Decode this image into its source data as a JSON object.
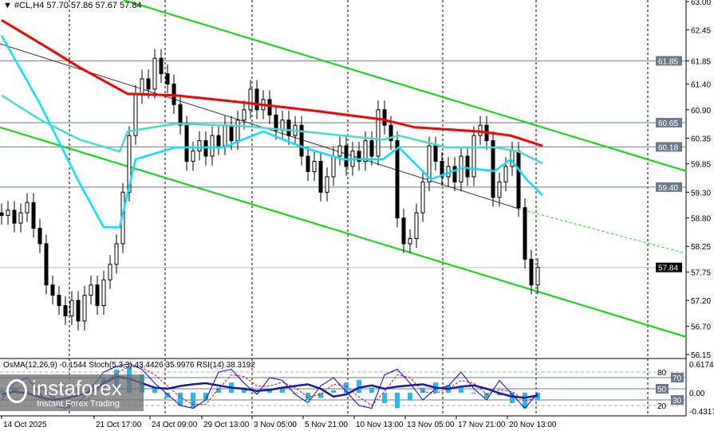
{
  "header": {
    "symbol": "#CL,H4",
    "ohlc": "57.70 57.86 57.67 57.84"
  },
  "indicators_label": "OsMA(12,26,9) -0.1544  Stoch(5,3,3) 43.4426 35.9976  RSI(14) 38.3192",
  "watermark": {
    "brand": "instaforex",
    "tagline": "Instant Forex Trading"
  },
  "colors": {
    "up": "#000000",
    "ma_slow": "#ff0000",
    "ma_mid": "#40e0d0",
    "ma_fast": "#00e5ff",
    "channel": "#00e000",
    "osma": "#22bbee",
    "stoch_main": "#0000ff",
    "stoch_signal": "#ff0000",
    "rsi": "#1a1aa0"
  },
  "chart_data": {
    "type": "candlestick",
    "price_axis": {
      "range": [
        56.15,
        63.0
      ],
      "ticks": [
        "63.00",
        "62.45",
        "61.85",
        "61.40",
        "60.90",
        "60.35",
        "59.85",
        "59.30",
        "58.80",
        "58.25",
        "57.75",
        "57.20",
        "56.70",
        "56.15"
      ]
    },
    "levels": [
      {
        "value": 61.85,
        "label": "61.85"
      },
      {
        "value": 60.65,
        "label": "60.65"
      },
      {
        "value": 60.18,
        "label": "60.18"
      },
      {
        "value": 59.4,
        "label": "59.40"
      }
    ],
    "current_price": {
      "value": 57.84,
      "label": "57.84"
    },
    "time_labels": [
      "14 Oct 2025",
      "21 Oct 17:00",
      "24 Oct 09:00",
      "29 Oct 13:00",
      "3 Nov 05:00",
      "5 Nov 21:00",
      "10 Nov 13:00",
      "13 Nov 05:00",
      "17 Nov 21:00",
      "20 Nov 13:00"
    ],
    "close": [
      58.85,
      58.95,
      58.7,
      58.9,
      59.1,
      58.6,
      58.3,
      57.5,
      57.3,
      57.1,
      56.9,
      57.2,
      56.8,
      57.3,
      57.5,
      57.1,
      57.6,
      57.9,
      58.3,
      59.3,
      60.4,
      61.2,
      61.5,
      61.3,
      61.9,
      61.6,
      61.4,
      61.0,
      60.6,
      59.9,
      60.1,
      60.3,
      60.0,
      60.4,
      60.2,
      60.6,
      60.3,
      60.7,
      60.9,
      61.3,
      60.9,
      61.1,
      60.8,
      60.5,
      60.7,
      60.4,
      60.6,
      60.0,
      59.7,
      59.9,
      59.3,
      59.6,
      60.0,
      60.2,
      59.8,
      60.1,
      59.9,
      60.3,
      60.0,
      60.9,
      60.6,
      60.3,
      58.8,
      58.3,
      58.4,
      58.9,
      59.5,
      60.2,
      59.9,
      59.6,
      59.8,
      59.5,
      60.0,
      59.6,
      60.4,
      60.6,
      60.3,
      59.2,
      59.5,
      59.8,
      60.1,
      59.0,
      58.0,
      57.5,
      57.84
    ],
    "ma_slow": [
      [
        0,
        62.64
      ],
      [
        7.25,
        62.1
      ],
      [
        12.25,
        61.72
      ],
      [
        19.75,
        61.21
      ],
      [
        27.25,
        61.18
      ],
      [
        37.25,
        61.05
      ],
      [
        49.75,
        60.87
      ],
      [
        59.75,
        60.71
      ],
      [
        64.75,
        60.56
      ],
      [
        74.75,
        60.48
      ],
      [
        79.75,
        60.4
      ],
      [
        84.75,
        60.2
      ]
    ],
    "ma_mid": [
      [
        0,
        61.18
      ],
      [
        6,
        60.71
      ],
      [
        12.25,
        60.32
      ],
      [
        18.5,
        60.09
      ],
      [
        19.75,
        60.48
      ],
      [
        27.25,
        60.63
      ],
      [
        37.25,
        60.59
      ],
      [
        47.25,
        60.48
      ],
      [
        59.75,
        60.32
      ],
      [
        62.25,
        60.4
      ],
      [
        69.75,
        60.17
      ],
      [
        77.25,
        60.17
      ],
      [
        81,
        60.09
      ],
      [
        84.75,
        59.86
      ]
    ],
    "ma_fast": [
      [
        0,
        62.34
      ],
      [
        6,
        61.02
      ],
      [
        12.25,
        59.47
      ],
      [
        16,
        58.62
      ],
      [
        18.5,
        58.62
      ],
      [
        21,
        59.94
      ],
      [
        27.25,
        60.17
      ],
      [
        34.75,
        60.17
      ],
      [
        41,
        60.48
      ],
      [
        47.25,
        60.17
      ],
      [
        53.5,
        59.94
      ],
      [
        59.75,
        59.94
      ],
      [
        62.25,
        60.17
      ],
      [
        67.25,
        59.55
      ],
      [
        72.25,
        59.78
      ],
      [
        77.25,
        59.71
      ],
      [
        79.75,
        59.94
      ],
      [
        82.25,
        59.55
      ],
      [
        84.75,
        59.24
      ]
    ],
    "channel_upper": [
      [
        19.1,
        63.03
      ],
      [
        107.3,
        59.71
      ]
    ],
    "channel_lower": [
      [
        -0.25,
        60.56
      ],
      [
        107.3,
        56.49
      ]
    ],
    "trendline": [
      [
        -0.25,
        62.18
      ],
      [
        81,
        58.98
      ]
    ],
    "trendline_ext": [
      [
        81,
        58.98
      ],
      [
        107.3,
        58.11
      ]
    ],
    "osc_axis": {
      "max": "0.6174",
      "min": "-0.4317",
      "zero": "0.00",
      "levels": [
        "80",
        "70",
        "50",
        "30",
        "20"
      ]
    },
    "osma": [
      0.05,
      0.1,
      0.05,
      -0.05,
      -0.1,
      -0.05,
      0.05,
      0.15,
      0.3,
      0.45,
      0.5,
      0.35,
      0.1,
      -0.1,
      -0.25,
      -0.3,
      -0.15,
      0.1,
      0.2,
      0.1,
      0.0,
      0.05,
      0.1,
      0.0,
      -0.15,
      -0.1,
      0.05,
      0.2,
      0.25,
      0.1,
      -0.2,
      -0.3,
      -0.15,
      0.1,
      0.2,
      0.15,
      0.1,
      0.0,
      -0.1,
      -0.05,
      -0.2,
      -0.3,
      -0.15
    ],
    "stoch_main": [
      30,
      60,
      70,
      40,
      20,
      15,
      25,
      50,
      80,
      90,
      95,
      85,
      60,
      40,
      20,
      15,
      30,
      80,
      85,
      60,
      40,
      70,
      65,
      40,
      25,
      55,
      70,
      45,
      20,
      15,
      75,
      85,
      60,
      30,
      50,
      55,
      80,
      50,
      30,
      65,
      40,
      15,
      43
    ],
    "stoch_signal": [
      35,
      45,
      62,
      55,
      35,
      22,
      20,
      35,
      58,
      78,
      90,
      88,
      75,
      55,
      35,
      22,
      22,
      50,
      75,
      72,
      55,
      55,
      62,
      52,
      35,
      40,
      58,
      55,
      35,
      20,
      45,
      75,
      70,
      45,
      42,
      50,
      65,
      60,
      40,
      48,
      45,
      28,
      36
    ],
    "rsi": [
      40,
      45,
      42,
      35,
      30,
      33,
      38,
      45,
      60,
      72,
      68,
      60,
      52,
      50,
      55,
      58,
      60,
      56,
      52,
      50,
      46,
      48,
      52,
      55,
      58,
      50,
      36,
      40,
      52,
      56,
      50,
      54,
      56,
      58,
      52,
      50,
      54,
      56,
      50,
      42,
      36,
      34,
      38
    ]
  }
}
